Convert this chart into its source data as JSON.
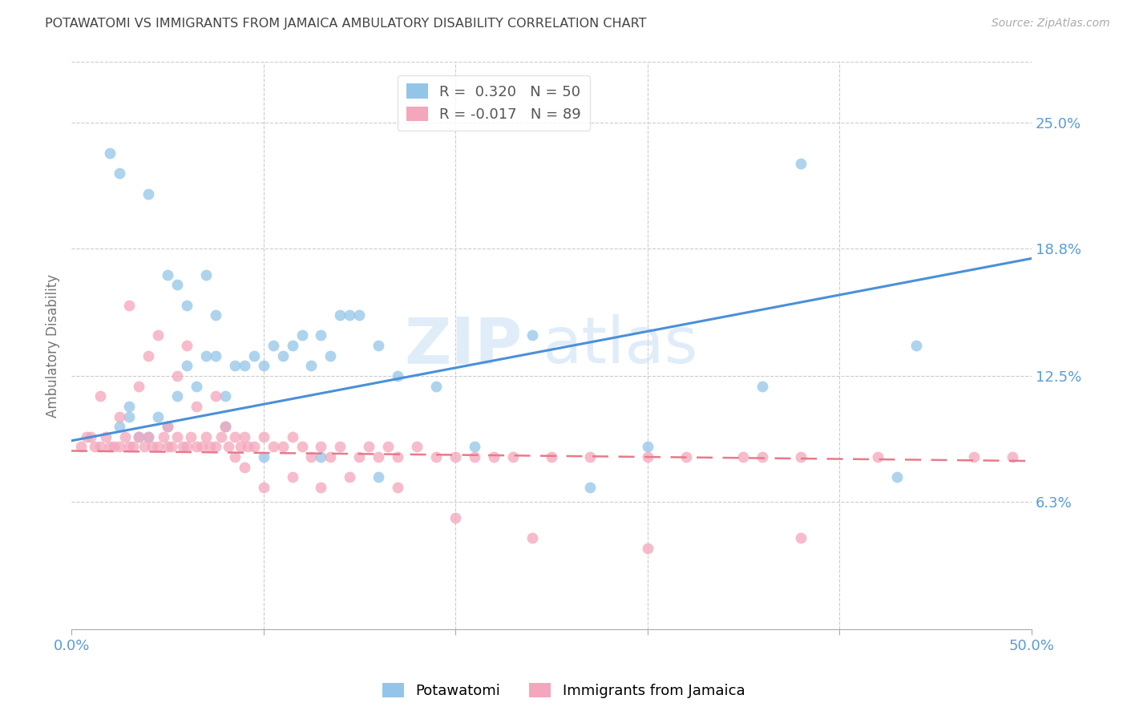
{
  "title": "POTAWATOMI VS IMMIGRANTS FROM JAMAICA AMBULATORY DISABILITY CORRELATION CHART",
  "source": "Source: ZipAtlas.com",
  "ylabel": "Ambulatory Disability",
  "xlim": [
    0.0,
    0.5
  ],
  "ylim": [
    0.0,
    0.28
  ],
  "xtick_positions": [
    0.0,
    0.1,
    0.2,
    0.3,
    0.4,
    0.5
  ],
  "xtick_labels": [
    "0.0%",
    "",
    "",
    "",
    "",
    "50.0%"
  ],
  "ytick_labels_right": [
    "25.0%",
    "18.8%",
    "12.5%",
    "6.3%"
  ],
  "ytick_vals_right": [
    0.25,
    0.188,
    0.125,
    0.063
  ],
  "legend1_label": "R =  0.320   N = 50",
  "legend2_label": "R = -0.017   N = 89",
  "color_blue": "#93c5e8",
  "color_pink": "#f4a6bc",
  "line_blue": "#4a90d9",
  "line_pink": "#e87a8a",
  "watermark_zip": "ZIP",
  "watermark_atlas": "atlas",
  "bg_color": "#ffffff",
  "title_color": "#444444",
  "tick_color": "#5b9bd5",
  "grid_color": "#cccccc",
  "blue_line_x": [
    0.0,
    0.5
  ],
  "blue_line_y": [
    0.093,
    0.183
  ],
  "pink_line_x": [
    0.0,
    0.5
  ],
  "pink_line_y": [
    0.088,
    0.083
  ],
  "blue_scatter_x": [
    0.025,
    0.03,
    0.03,
    0.035,
    0.04,
    0.045,
    0.05,
    0.055,
    0.06,
    0.065,
    0.07,
    0.075,
    0.08,
    0.085,
    0.09,
    0.095,
    0.1,
    0.105,
    0.11,
    0.115,
    0.12,
    0.125,
    0.13,
    0.135,
    0.14,
    0.145,
    0.15,
    0.16,
    0.17,
    0.19,
    0.21,
    0.27,
    0.3,
    0.36,
    0.43,
    0.44,
    0.02,
    0.025,
    0.04,
    0.05,
    0.055,
    0.06,
    0.07,
    0.075,
    0.08,
    0.1,
    0.13,
    0.16,
    0.24,
    0.38
  ],
  "blue_scatter_y": [
    0.1,
    0.105,
    0.11,
    0.095,
    0.095,
    0.105,
    0.1,
    0.115,
    0.13,
    0.12,
    0.135,
    0.135,
    0.115,
    0.13,
    0.13,
    0.135,
    0.13,
    0.14,
    0.135,
    0.14,
    0.145,
    0.13,
    0.145,
    0.135,
    0.155,
    0.155,
    0.155,
    0.14,
    0.125,
    0.12,
    0.09,
    0.07,
    0.09,
    0.12,
    0.075,
    0.14,
    0.235,
    0.225,
    0.215,
    0.175,
    0.17,
    0.16,
    0.175,
    0.155,
    0.1,
    0.085,
    0.085,
    0.075,
    0.145,
    0.23
  ],
  "pink_scatter_x": [
    0.005,
    0.008,
    0.01,
    0.012,
    0.015,
    0.018,
    0.02,
    0.022,
    0.025,
    0.028,
    0.03,
    0.032,
    0.035,
    0.038,
    0.04,
    0.042,
    0.045,
    0.048,
    0.05,
    0.052,
    0.055,
    0.058,
    0.06,
    0.062,
    0.065,
    0.068,
    0.07,
    0.072,
    0.075,
    0.078,
    0.08,
    0.082,
    0.085,
    0.088,
    0.09,
    0.092,
    0.095,
    0.1,
    0.105,
    0.11,
    0.115,
    0.12,
    0.125,
    0.13,
    0.135,
    0.14,
    0.15,
    0.155,
    0.16,
    0.165,
    0.17,
    0.18,
    0.19,
    0.2,
    0.21,
    0.22,
    0.23,
    0.25,
    0.27,
    0.3,
    0.32,
    0.35,
    0.36,
    0.38,
    0.42,
    0.47,
    0.015,
    0.025,
    0.035,
    0.04,
    0.05,
    0.055,
    0.065,
    0.075,
    0.085,
    0.09,
    0.1,
    0.115,
    0.13,
    0.145,
    0.17,
    0.2,
    0.24,
    0.3,
    0.38,
    0.49,
    0.03,
    0.045,
    0.06
  ],
  "pink_scatter_y": [
    0.09,
    0.095,
    0.095,
    0.09,
    0.09,
    0.095,
    0.09,
    0.09,
    0.09,
    0.095,
    0.09,
    0.09,
    0.095,
    0.09,
    0.095,
    0.09,
    0.09,
    0.095,
    0.09,
    0.09,
    0.095,
    0.09,
    0.09,
    0.095,
    0.09,
    0.09,
    0.095,
    0.09,
    0.09,
    0.095,
    0.1,
    0.09,
    0.095,
    0.09,
    0.095,
    0.09,
    0.09,
    0.095,
    0.09,
    0.09,
    0.095,
    0.09,
    0.085,
    0.09,
    0.085,
    0.09,
    0.085,
    0.09,
    0.085,
    0.09,
    0.085,
    0.09,
    0.085,
    0.085,
    0.085,
    0.085,
    0.085,
    0.085,
    0.085,
    0.085,
    0.085,
    0.085,
    0.085,
    0.085,
    0.085,
    0.085,
    0.115,
    0.105,
    0.12,
    0.135,
    0.1,
    0.125,
    0.11,
    0.115,
    0.085,
    0.08,
    0.07,
    0.075,
    0.07,
    0.075,
    0.07,
    0.055,
    0.045,
    0.04,
    0.045,
    0.085,
    0.16,
    0.145,
    0.14
  ]
}
